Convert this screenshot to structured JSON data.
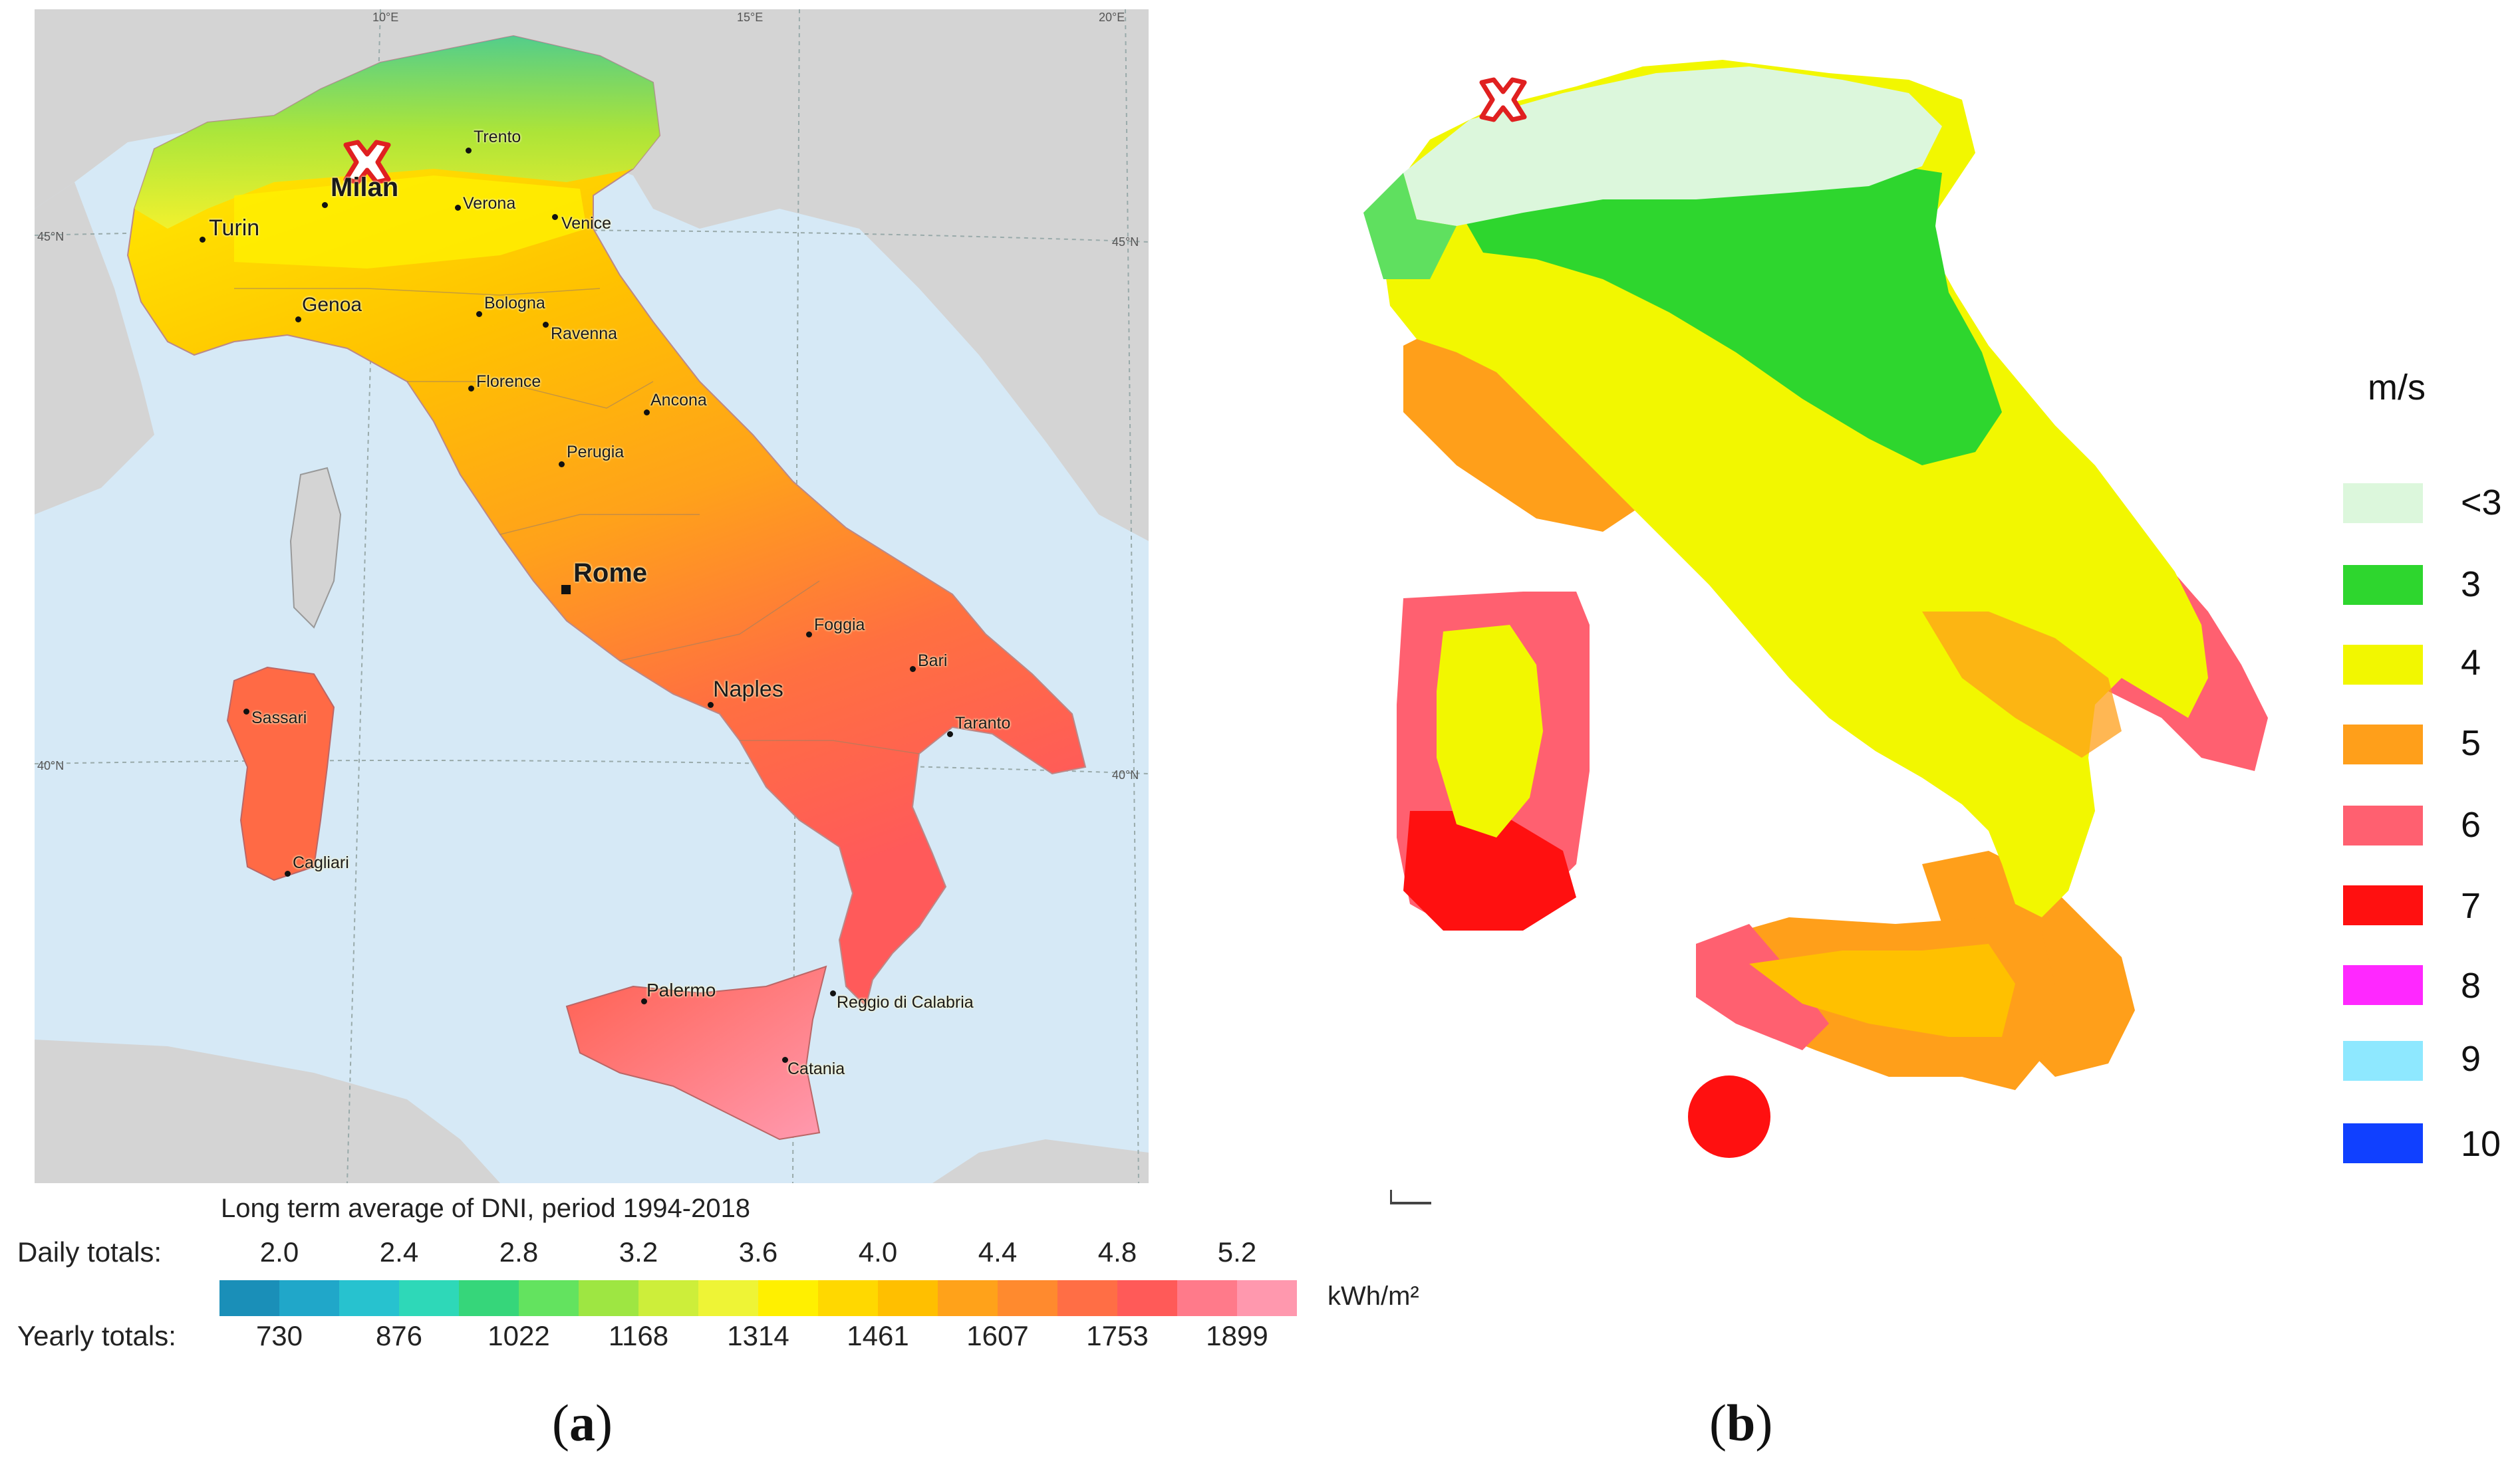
{
  "panel_a": {
    "graticule": {
      "top": [
        "10°E",
        "15°E",
        "20°E"
      ],
      "left": [
        "45°N",
        "40°N"
      ],
      "right": [
        "45°N",
        "40°N"
      ]
    },
    "cities": [
      {
        "name": "Trento"
      },
      {
        "name": "Milan"
      },
      {
        "name": "Verona"
      },
      {
        "name": "Venice"
      },
      {
        "name": "Turin"
      },
      {
        "name": "Genoa"
      },
      {
        "name": "Bologna"
      },
      {
        "name": "Ravenna"
      },
      {
        "name": "Florence"
      },
      {
        "name": "Ancona"
      },
      {
        "name": "Perugia"
      },
      {
        "name": "Rome"
      },
      {
        "name": "Foggia"
      },
      {
        "name": "Bari"
      },
      {
        "name": "Naples"
      },
      {
        "name": "Taranto"
      },
      {
        "name": "Sassari"
      },
      {
        "name": "Cagliari"
      },
      {
        "name": "Palermo"
      },
      {
        "name": "Reggio di Calabria"
      },
      {
        "name": "Catania"
      }
    ],
    "legend": {
      "title": "Long term average of DNI, period 1994-2018",
      "daily_label": "Daily totals:",
      "yearly_label": "Yearly totals:",
      "daily_values": [
        "2.0",
        "2.4",
        "2.8",
        "3.2",
        "3.6",
        "4.0",
        "4.4",
        "4.8",
        "5.2"
      ],
      "yearly_values": [
        "730",
        "876",
        "1022",
        "1168",
        "1314",
        "1461",
        "1607",
        "1753",
        "1899"
      ],
      "unit": "kWh/m²",
      "colors": [
        "#1a8fb8",
        "#20a7c9",
        "#27c2cf",
        "#2ed8b8",
        "#36d67a",
        "#63e35f",
        "#9ee642",
        "#cdee3a",
        "#eef436",
        "#fff000",
        "#ffd800",
        "#ffbf00",
        "#ffa21a",
        "#ff8a2e",
        "#ff6e45",
        "#ff5a58",
        "#ff7a8a",
        "#ff98ae"
      ]
    },
    "caption": {
      "open": "(",
      "letter": "a",
      "close": ")"
    }
  },
  "panel_b": {
    "legend": {
      "unit": "m/s",
      "items": [
        {
          "label": "<3",
          "color": "#dcf7dc"
        },
        {
          "label": "3",
          "color": "#2ed62e"
        },
        {
          "label": "4",
          "color": "#f2f700"
        },
        {
          "label": "5",
          "color": "#ff9f1a"
        },
        {
          "label": "6",
          "color": "#ff6070"
        },
        {
          "label": "7",
          "color": "#ff1010"
        },
        {
          "label": "8",
          "color": "#ff28ff"
        },
        {
          "label": "9",
          "color": "#8ee8ff"
        },
        {
          "label": "10",
          "color": "#1040ff"
        }
      ]
    },
    "caption": {
      "open": "(",
      "letter": "b",
      "close": ")"
    }
  },
  "markers": {
    "site_marker_color": "#e02020"
  }
}
